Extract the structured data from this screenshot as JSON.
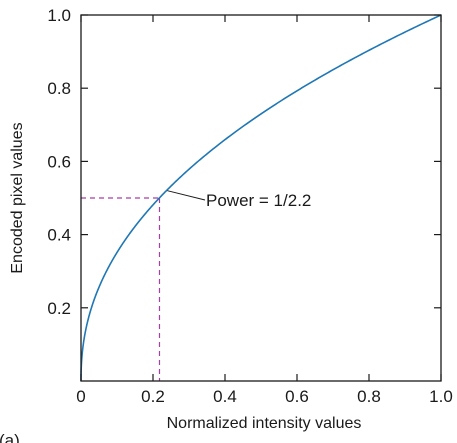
{
  "chart_data": {
    "type": "line",
    "xlabel": "Normalized intensity values",
    "ylabel": "Encoded pixel values",
    "xlim": [
      0,
      1
    ],
    "ylim": [
      0,
      1
    ],
    "x_ticks": [
      0,
      0.2,
      0.4,
      0.6,
      0.8,
      1.0
    ],
    "x_tick_labels": [
      "0",
      "0.2",
      "0.4",
      "0.6",
      "0.8",
      "1.0"
    ],
    "y_ticks": [
      0.2,
      0.4,
      0.6,
      0.8,
      1.0
    ],
    "y_tick_labels": [
      "0.2",
      "0.4",
      "0.6",
      "0.8",
      "1.0"
    ],
    "grid": false,
    "series": [
      {
        "function": "power",
        "exponent": 0.4545,
        "color": "#1f77b4",
        "x_range": [
          0,
          1
        ]
      }
    ],
    "reference_point": {
      "x": 0.218,
      "y": 0.5,
      "color": "#a63fa6",
      "style": "dashed"
    },
    "annotation": {
      "text": "Power = 1/2.2",
      "x": 0.24,
      "y": 0.52
    },
    "corner_label": "(a)"
  }
}
